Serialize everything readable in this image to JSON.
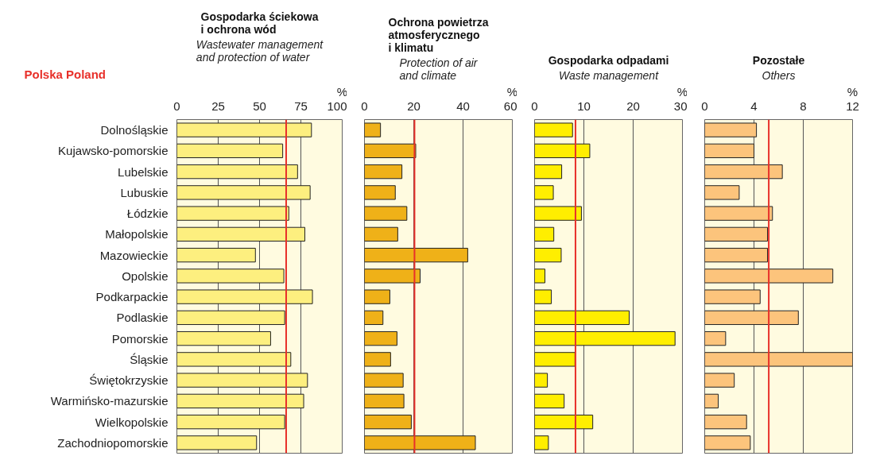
{
  "chart_data": [
    {
      "type": "bar",
      "orientation": "horizontal",
      "title": "Gospodarka ściekowa\ni ochrona wód",
      "subtitle": "Wastewater management\nand protection of water",
      "xlabel": "%",
      "categories": [
        "Dolnośląskie",
        "Kujawsko-pomorskie",
        "Lubelskie",
        "Lubuskie",
        "Łódzkie",
        "Małopolskie",
        "Mazowieckie",
        "Opolskie",
        "Podkarpackie",
        "Podlaskie",
        "Pomorskie",
        "Śląskie",
        "Świętokrzyskie",
        "Warmińsko-mazurskie",
        "Wielkopolskie",
        "Zachodniopomorskie"
      ],
      "values": [
        81.4,
        64,
        73,
        80.6,
        67.7,
        77.4,
        47.5,
        64.7,
        82,
        65.2,
        56.7,
        68.9,
        79,
        76.7,
        65.2,
        48.2
      ],
      "color": "#fdef7f",
      "xlim": [
        0,
        100
      ],
      "xticks": [
        0,
        25,
        50,
        75,
        100
      ],
      "grid": "x",
      "ref_lines": [
        {
          "axis": "x",
          "value": 66.1,
          "label": "Polska Poland",
          "color": "#e8302a"
        }
      ]
    },
    {
      "type": "bar",
      "orientation": "horizontal",
      "title": "Ochrona powietrza\natmosferycznego\ni klimatu",
      "subtitle": "Protection of air\nand climate",
      "xlabel": "%",
      "categories": [
        null,
        null,
        null,
        null,
        null,
        null,
        null,
        null,
        null,
        null,
        null,
        null,
        null,
        null,
        null,
        null
      ],
      "values": [
        6.5,
        20.8,
        15.2,
        12.5,
        17.2,
        13.5,
        41.9,
        22.6,
        10.3,
        7.5,
        13.2,
        10.6,
        15.7,
        16,
        19,
        45
      ],
      "color": "#efb118",
      "xlim": [
        0,
        60
      ],
      "xticks": [
        0,
        20,
        40,
        60
      ],
      "grid": "x",
      "tick_labels": "x",
      "ref_lines": [
        {
          "axis": "x",
          "value": 20.3,
          "color": "#e8302a"
        }
      ]
    },
    {
      "type": "bar",
      "orientation": "horizontal",
      "title": "Gospodarka odpadami",
      "subtitle": "Waste management",
      "xlabel": "%",
      "categories": [
        null,
        null,
        null,
        null,
        null,
        null,
        null,
        null,
        null,
        null,
        null,
        null,
        null,
        null,
        null,
        null
      ],
      "values": [
        7.7,
        11.2,
        5.5,
        3.8,
        9.5,
        3.9,
        5.4,
        2.1,
        3.4,
        19.2,
        28.5,
        8.2,
        2.6,
        6,
        11.8,
        2.8
      ],
      "color": "#ffee00",
      "xlim": [
        0,
        30
      ],
      "xticks": [
        0,
        10,
        20,
        30
      ],
      "grid": "x",
      "tick_labels": "x",
      "ref_lines": [
        {
          "axis": "x",
          "value": 8.3,
          "color": "#e8302a"
        }
      ]
    },
    {
      "type": "bar",
      "orientation": "horizontal",
      "title": "Pozostałe",
      "subtitle": "Others",
      "xlabel": "%",
      "categories": [
        null,
        null,
        null,
        null,
        null,
        null,
        null,
        null,
        null,
        null,
        null,
        null,
        null,
        null,
        null,
        null
      ],
      "values": [
        4.2,
        4.0,
        6.3,
        2.8,
        5.5,
        5.1,
        5.1,
        10.4,
        4.5,
        7.6,
        1.7,
        12,
        2.4,
        1.1,
        3.4,
        3.7
      ],
      "color": "#fcc47c",
      "xlim": [
        0,
        12
      ],
      "xticks": [
        0,
        4,
        8,
        12
      ],
      "grid": "x",
      "tick_labels": "x",
      "ref_lines": [
        {
          "axis": "x",
          "value": 5.2,
          "color": "#e8302a"
        }
      ]
    }
  ]
}
